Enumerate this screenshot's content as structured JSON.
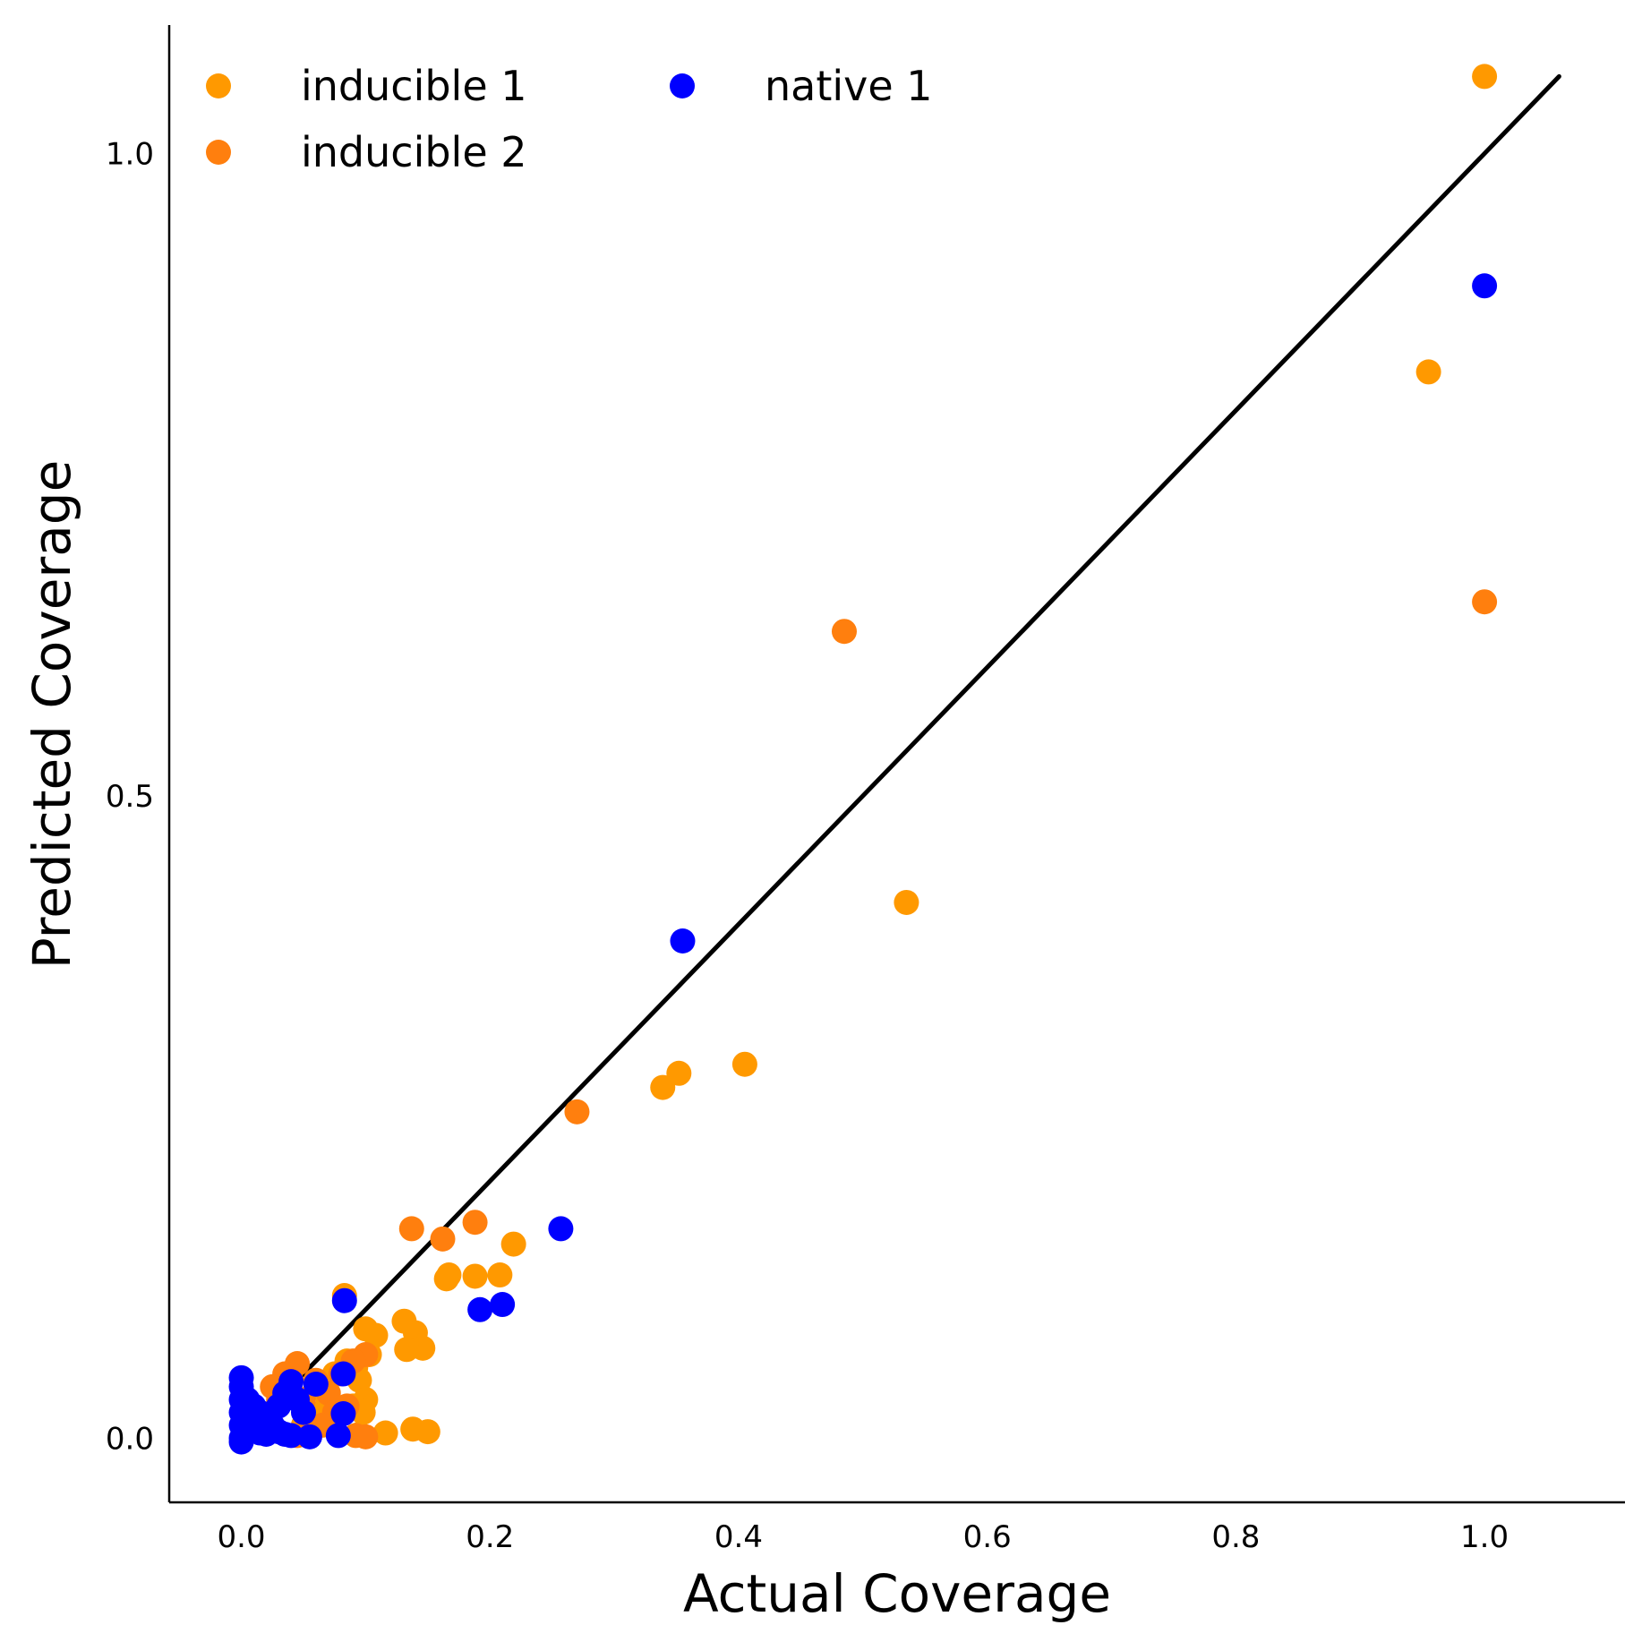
{
  "chart_data": {
    "type": "scatter",
    "xlabel": "Actual Coverage",
    "ylabel": "Predicted Coverage",
    "xlim": [
      -0.058,
      1.113
    ],
    "ylim": [
      -0.05,
      1.1
    ],
    "xticks": [
      {
        "value": 0.0,
        "label": "0.0"
      },
      {
        "value": 0.2,
        "label": "0.2"
      },
      {
        "value": 0.4,
        "label": "0.4"
      },
      {
        "value": 0.6,
        "label": "0.6"
      },
      {
        "value": 0.8,
        "label": "0.8"
      },
      {
        "value": 1.0,
        "label": "1.0"
      }
    ],
    "yticks": [
      {
        "value": 0.0,
        "label": "0.0"
      },
      {
        "value": 0.5,
        "label": "0.5"
      },
      {
        "value": 1.0,
        "label": "1.0"
      }
    ],
    "grid": false,
    "legend_position": "top-left",
    "reference_line": {
      "x": [
        0.02,
        1.06
      ],
      "y": [
        0.02,
        1.06
      ],
      "color": "#000000"
    },
    "series": [
      {
        "name": "inducible 1",
        "color": "#ff9900",
        "points": [
          [
            1.0,
            1.06
          ],
          [
            0.955,
            0.83
          ],
          [
            0.535,
            0.417
          ],
          [
            0.405,
            0.291
          ],
          [
            0.352,
            0.284
          ],
          [
            0.339,
            0.273
          ],
          [
            0.219,
            0.151
          ],
          [
            0.208,
            0.127
          ],
          [
            0.188,
            0.126
          ],
          [
            0.167,
            0.127
          ],
          [
            0.165,
            0.124
          ],
          [
            0.083,
            0.111
          ],
          [
            0.131,
            0.091
          ],
          [
            0.14,
            0.082
          ],
          [
            0.146,
            0.07
          ],
          [
            0.133,
            0.069
          ],
          [
            0.1,
            0.085
          ],
          [
            0.108,
            0.08
          ],
          [
            0.103,
            0.065
          ],
          [
            0.095,
            0.045
          ],
          [
            0.1,
            0.03
          ],
          [
            0.09,
            0.025
          ],
          [
            0.098,
            0.02
          ],
          [
            0.085,
            0.06
          ],
          [
            0.092,
            0.055
          ],
          [
            0.15,
            0.005
          ],
          [
            0.138,
            0.007
          ],
          [
            0.116,
            0.004
          ],
          [
            0.095,
            0.003
          ],
          [
            0.075,
            0.05
          ],
          [
            0.07,
            0.03
          ],
          [
            0.065,
            0.015
          ],
          [
            0.06,
            0.04
          ],
          [
            0.055,
            0.02
          ],
          [
            0.05,
            0.01
          ]
        ]
      },
      {
        "name": "inducible 2",
        "color": "#ff7f0e",
        "points": [
          [
            1.0,
            0.651
          ],
          [
            0.485,
            0.628
          ],
          [
            0.27,
            0.254
          ],
          [
            0.188,
            0.168
          ],
          [
            0.137,
            0.163
          ],
          [
            0.162,
            0.155
          ],
          [
            0.1,
            0.065
          ],
          [
            0.09,
            0.06
          ],
          [
            0.08,
            0.05
          ],
          [
            0.045,
            0.058
          ],
          [
            0.04,
            0.045
          ],
          [
            0.035,
            0.05
          ],
          [
            0.06,
            0.045
          ],
          [
            0.07,
            0.035
          ],
          [
            0.075,
            0.02
          ],
          [
            0.05,
            0.03
          ],
          [
            0.065,
            0.01
          ],
          [
            0.055,
            0.003
          ],
          [
            0.045,
            0.002
          ],
          [
            0.092,
            0.002
          ],
          [
            0.1,
            0.001
          ],
          [
            0.085,
            0.025
          ],
          [
            0.03,
            0.03
          ],
          [
            0.025,
            0.04
          ]
        ]
      },
      {
        "name": "native 1",
        "color": "#0000ff",
        "points": [
          [
            1.0,
            0.897
          ],
          [
            0.355,
            0.387
          ],
          [
            0.257,
            0.163
          ],
          [
            0.083,
            0.107
          ],
          [
            0.192,
            0.1
          ],
          [
            0.21,
            0.104
          ],
          [
            0.082,
            0.05
          ],
          [
            0.06,
            0.042
          ],
          [
            0.04,
            0.044
          ],
          [
            0.045,
            0.03
          ],
          [
            0.035,
            0.035
          ],
          [
            0.03,
            0.025
          ],
          [
            0.05,
            0.02
          ],
          [
            0.082,
            0.019
          ],
          [
            0.078,
            0.002
          ],
          [
            0.055,
            0.001
          ],
          [
            0.04,
            0.002
          ],
          [
            0.03,
            0.005
          ],
          [
            0.025,
            0.01
          ],
          [
            0.02,
            0.015
          ],
          [
            0.015,
            0.02
          ],
          [
            0.01,
            0.025
          ],
          [
            0.005,
            0.03
          ],
          [
            0.0,
            0.04
          ],
          [
            0.0,
            0.03
          ],
          [
            0.0,
            0.02
          ],
          [
            0.0,
            0.01
          ],
          [
            0.0,
            0.0
          ],
          [
            0.0,
            0.047
          ],
          [
            0.0,
            -0.003
          ],
          [
            0.005,
            0.005
          ],
          [
            0.01,
            0.008
          ],
          [
            0.015,
            0.004
          ],
          [
            0.02,
            0.003
          ],
          [
            0.035,
            0.003
          ]
        ]
      }
    ]
  }
}
